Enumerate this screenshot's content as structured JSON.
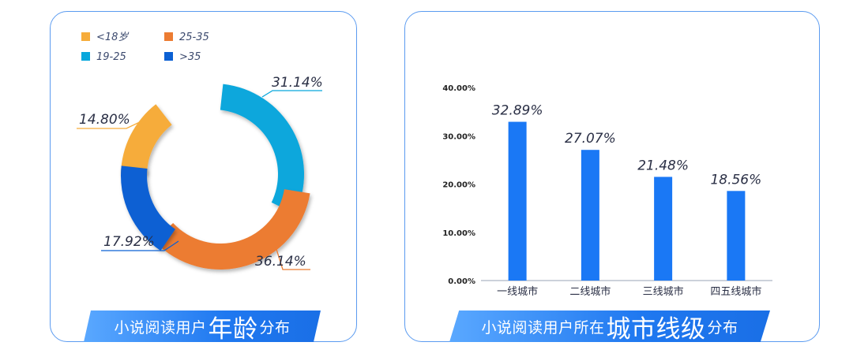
{
  "age_chart": {
    "legend": [
      {
        "label": "<18岁",
        "color": "#f6ac3b"
      },
      {
        "label": "25-35",
        "color": "#ec7c32"
      },
      {
        "label": "19-25",
        "color": "#08a7dc"
      },
      {
        "label": ">35",
        "color": "#0b60d3"
      }
    ],
    "title": {
      "prefix": "小说阅读用户",
      "highlight": "年龄",
      "suffix": "分布"
    }
  },
  "city_chart": {
    "title": {
      "prefix": "小说阅读用户所在",
      "highlight": "城市线级",
      "suffix": "分布"
    }
  },
  "chart_data": [
    {
      "type": "pie",
      "donut": true,
      "categories": [
        "<18岁",
        "19-25",
        "25-35",
        ">35"
      ],
      "values": [
        14.8,
        31.14,
        36.14,
        17.92
      ],
      "labels": [
        "14.80%",
        "31.14%",
        "36.14%",
        "17.92%"
      ],
      "colors": [
        "#f6ac3b",
        "#08a7dc",
        "#ec7c32",
        "#0b60d3"
      ],
      "legend_position": "top-left"
    },
    {
      "type": "bar",
      "categories": [
        "一线城市",
        "二线城市",
        "三线城市",
        "四五线城市"
      ],
      "values": [
        32.89,
        27.07,
        21.48,
        18.56
      ],
      "data_labels": [
        "32.89%",
        "27.07%",
        "21.48%",
        "18.56%"
      ],
      "y_ticks": [
        "0.00%",
        "10.00%",
        "20.00%",
        "30.00%",
        "40.00%"
      ],
      "ylim": [
        0,
        40
      ],
      "bar_color": "#1a78f5",
      "grid": false
    }
  ]
}
